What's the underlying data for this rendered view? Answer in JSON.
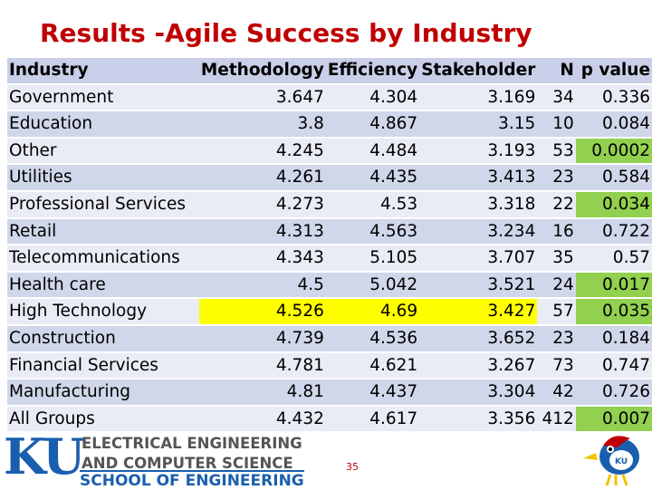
{
  "title": "Results -Agile Success by Industry",
  "table": {
    "headers": [
      "Industry",
      "Methodology",
      "Efficiency",
      "Stakeholder",
      "N",
      "p value"
    ],
    "rows": [
      {
        "industry": "Government",
        "methodology": "3.647",
        "efficiency": "4.304",
        "stakeholder": "3.169",
        "n": "34",
        "p": "0.336"
      },
      {
        "industry": "Education",
        "methodology": "3.8",
        "efficiency": "4.867",
        "stakeholder": "3.15",
        "n": "10",
        "p": "0.084"
      },
      {
        "industry": "Other",
        "methodology": "4.245",
        "efficiency": "4.484",
        "stakeholder": "3.193",
        "n": "53",
        "p": "0.0002"
      },
      {
        "industry": "Utilities",
        "methodology": "4.261",
        "efficiency": "4.435",
        "stakeholder": "3.413",
        "n": "23",
        "p": "0.584"
      },
      {
        "industry": "Professional Services",
        "methodology": "4.273",
        "efficiency": "4.53",
        "stakeholder": "3.318",
        "n": "22",
        "p": "0.034"
      },
      {
        "industry": "Retail",
        "methodology": "4.313",
        "efficiency": "4.563",
        "stakeholder": "3.234",
        "n": "16",
        "p": "0.722"
      },
      {
        "industry": "Telecommunications",
        "methodology": "4.343",
        "efficiency": "5.105",
        "stakeholder": "3.707",
        "n": "35",
        "p": "0.57"
      },
      {
        "industry": "Health care",
        "methodology": "4.5",
        "efficiency": "5.042",
        "stakeholder": "3.521",
        "n": "24",
        "p": "0.017"
      },
      {
        "industry": "High Technology",
        "methodology": "4.526",
        "efficiency": "4.69",
        "stakeholder": "3.427",
        "n": "57",
        "p": "0.035"
      },
      {
        "industry": "Construction",
        "methodology": "4.739",
        "efficiency": "4.536",
        "stakeholder": "3.652",
        "n": "23",
        "p": "0.184"
      },
      {
        "industry": "Financial Services",
        "methodology": "4.781",
        "efficiency": "4.621",
        "stakeholder": "3.267",
        "n": "73",
        "p": "0.747"
      },
      {
        "industry": "Manufacturing",
        "methodology": "4.81",
        "efficiency": "4.437",
        "stakeholder": "3.304",
        "n": "42",
        "p": "0.726"
      },
      {
        "industry": "All Groups",
        "methodology": "4.432",
        "efficiency": "4.617",
        "stakeholder": "3.356",
        "n": "412",
        "p": "0.007"
      }
    ]
  },
  "highlight_colors": {
    "yellow": "#ffff00",
    "green": "#92d050"
  },
  "footer": {
    "logo_ku": "KU",
    "dept_line1": "ELECTRICAL ENGINEERING",
    "dept_line2": "AND COMPUTER SCIENCE",
    "school": "SCHOOL OF ENGINEERING",
    "page_number": "35",
    "mascot_icon": "jayhawk-mascot-icon"
  }
}
